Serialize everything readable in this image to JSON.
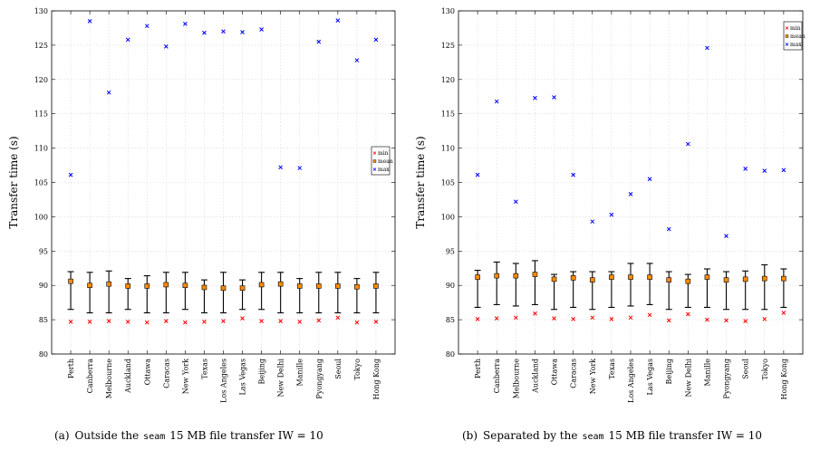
{
  "chart_data": [
    {
      "type": "scatter",
      "ylabel": "Transfer time (s)",
      "ylim": [
        80,
        130
      ],
      "yticks": [
        80,
        85,
        90,
        95,
        100,
        105,
        110,
        115,
        120,
        125,
        130
      ],
      "grid": true,
      "legend_position": "right-middle",
      "caption": {
        "label": "(a)",
        "pre": "Outside the",
        "mono": "seam",
        "post": "15 MB file transfer IW = 10"
      },
      "categories": [
        "Perth",
        "Canberra",
        "Melbourne",
        "Auckland",
        "Ottawa",
        "Caracas",
        "New York",
        "Texas",
        "Los Angeles",
        "Las Vegas",
        "Beijing",
        "New Delhi",
        "Manille",
        "Pyongyang",
        "Seoul",
        "Tokyo",
        "Hong Kong"
      ],
      "series": [
        {
          "name": "min",
          "color": "#ff0000",
          "values": [
            84.7,
            84.7,
            84.8,
            84.7,
            84.6,
            84.8,
            84.6,
            84.7,
            84.8,
            85.2,
            84.8,
            84.8,
            84.7,
            84.9,
            85.3,
            84.6,
            84.7
          ]
        },
        {
          "name": "mean",
          "color": "#ff8c00",
          "values": [
            90.6,
            90.0,
            90.2,
            89.9,
            89.9,
            90.1,
            90.0,
            89.7,
            89.6,
            89.6,
            90.1,
            90.2,
            89.9,
            89.9,
            89.9,
            89.8,
            89.9
          ]
        },
        {
          "name": "max",
          "color": "#0000ff",
          "values": [
            106.1,
            128.5,
            118.1,
            125.8,
            127.8,
            124.8,
            128.1,
            126.8,
            127.0,
            126.9,
            127.3,
            107.2,
            107.1,
            125.5,
            128.6,
            122.8,
            125.8
          ]
        }
      ],
      "error_low": [
        86.5,
        86.0,
        86.0,
        86.5,
        86.0,
        86.0,
        86.5,
        86.0,
        86.0,
        86.5,
        86.5,
        86.0,
        86.0,
        86.0,
        86.0,
        86.0,
        86.0
      ],
      "error_high": [
        92.0,
        91.9,
        92.1,
        91.0,
        91.4,
        91.9,
        91.9,
        90.8,
        91.9,
        90.8,
        91.9,
        91.9,
        91.0,
        91.9,
        91.9,
        91.0,
        91.9
      ]
    },
    {
      "type": "scatter",
      "ylabel": "Transfer time (s)",
      "ylim": [
        80,
        130
      ],
      "yticks": [
        80,
        85,
        90,
        95,
        100,
        105,
        110,
        115,
        120,
        125,
        130
      ],
      "grid": true,
      "legend_position": "top-right",
      "caption": {
        "label": "(b)",
        "pre": "Separated by the",
        "mono": "seam",
        "post": "15 MB file transfer IW = 10"
      },
      "categories": [
        "Perth",
        "Canberra",
        "Melbourne",
        "Auckland",
        "Ottawa",
        "Caracas",
        "New York",
        "Texas",
        "Los Angeles",
        "Las Vegas",
        "Beijing",
        "New Delhi",
        "Manille",
        "Pyongyang",
        "Seoul",
        "Tokyo",
        "Hong Kong"
      ],
      "series": [
        {
          "name": "min",
          "color": "#ff0000",
          "values": [
            85.1,
            85.2,
            85.3,
            85.9,
            85.2,
            85.1,
            85.3,
            85.1,
            85.3,
            85.7,
            84.9,
            85.8,
            85.0,
            84.9,
            84.8,
            85.1,
            86.0
          ]
        },
        {
          "name": "mean",
          "color": "#ff8c00",
          "values": [
            91.2,
            91.4,
            91.4,
            91.6,
            90.9,
            91.1,
            90.8,
            91.2,
            91.2,
            91.2,
            90.8,
            90.6,
            91.2,
            90.8,
            90.9,
            91.0,
            91.0
          ]
        },
        {
          "name": "max",
          "color": "#0000ff",
          "values": [
            106.1,
            116.8,
            102.2,
            117.3,
            117.4,
            106.1,
            99.3,
            100.3,
            103.3,
            105.5,
            98.2,
            110.6,
            124.6,
            97.2,
            107.0,
            106.7,
            106.8
          ]
        }
      ],
      "error_low": [
        86.8,
        87.2,
        87.0,
        87.2,
        86.5,
        86.8,
        86.5,
        86.8,
        87.0,
        87.2,
        86.5,
        86.8,
        86.8,
        86.5,
        86.5,
        86.5,
        86.8
      ],
      "error_high": [
        92.2,
        93.4,
        93.2,
        93.6,
        91.6,
        92.0,
        92.0,
        92.0,
        93.2,
        93.2,
        92.0,
        91.6,
        92.4,
        92.0,
        92.1,
        93.0,
        92.4
      ]
    }
  ]
}
